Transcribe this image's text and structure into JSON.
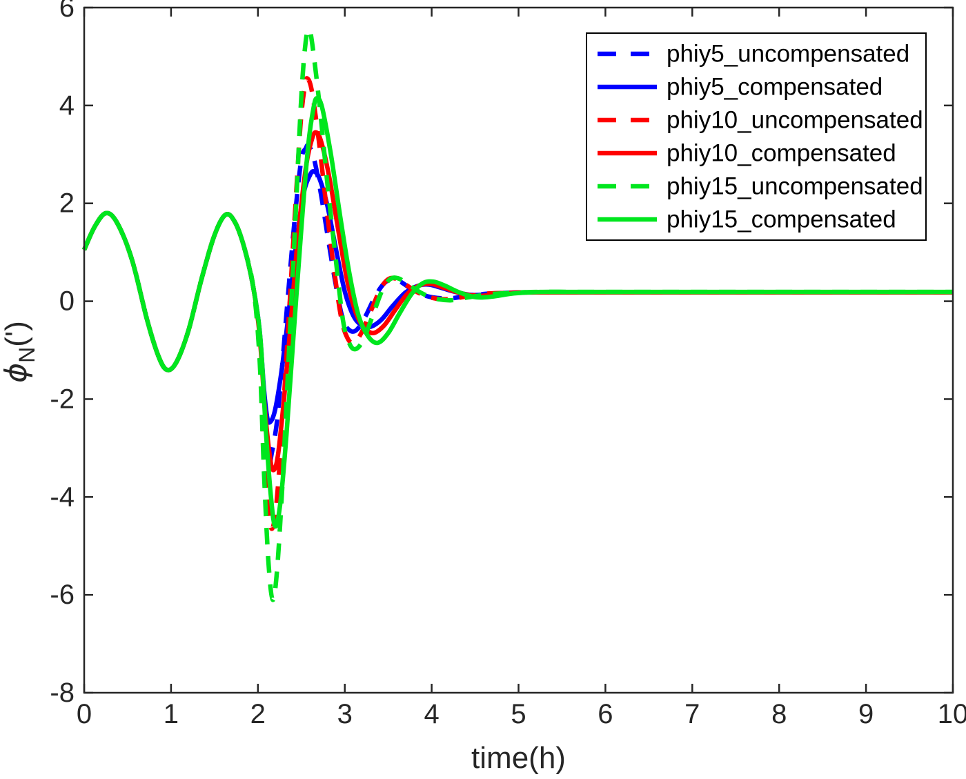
{
  "figure": {
    "background": "#ffffff",
    "axis_color": "#262626"
  },
  "chart_data": {
    "type": "line",
    "title": "",
    "xlabel": "time(h)",
    "ylabel": "ϕ_N(')",
    "ylabel_parts": {
      "symbol": "ϕ",
      "subscript": "N",
      "suffix": "(')"
    },
    "xlim": [
      0,
      10
    ],
    "ylim": [
      -8,
      6
    ],
    "xticks": [
      0,
      1,
      2,
      3,
      4,
      5,
      6,
      7,
      8,
      9,
      10
    ],
    "yticks": [
      6,
      4,
      2,
      0,
      -2,
      -4,
      -6,
      -8
    ],
    "grid": false,
    "legend_position": "northeast",
    "colors": {
      "blue": "#0000ff",
      "red": "#ff0000",
      "green": "#00e61e"
    },
    "common_prefix": [
      [
        0,
        1.05
      ],
      [
        0.12,
        1.52
      ],
      [
        0.25,
        1.8
      ],
      [
        0.38,
        1.6
      ],
      [
        0.55,
        0.85
      ],
      [
        0.72,
        -0.35
      ],
      [
        0.85,
        -1.1
      ],
      [
        0.95,
        -1.4
      ],
      [
        1.06,
        -1.25
      ],
      [
        1.2,
        -0.6
      ],
      [
        1.35,
        0.45
      ],
      [
        1.5,
        1.35
      ],
      [
        1.63,
        1.77
      ],
      [
        1.74,
        1.6
      ],
      [
        1.85,
        1.05
      ],
      [
        1.95,
        0.25
      ]
    ],
    "series": [
      {
        "name": "phiy5_uncompensated",
        "color": "blue",
        "style": "dashed",
        "points": [
          [
            2.02,
            -0.8
          ],
          [
            2.07,
            -2.3
          ],
          [
            2.12,
            -3.35
          ],
          [
            2.16,
            -3.1
          ],
          [
            2.22,
            -2.45
          ],
          [
            2.28,
            -1.3
          ],
          [
            2.35,
            0.2
          ],
          [
            2.43,
            1.8
          ],
          [
            2.5,
            2.9
          ],
          [
            2.55,
            3.12
          ],
          [
            2.58,
            3.18
          ],
          [
            2.64,
            2.95
          ],
          [
            2.72,
            2.25
          ],
          [
            2.81,
            1.25
          ],
          [
            2.9,
            0.3
          ],
          [
            2.98,
            -0.38
          ],
          [
            3.06,
            -0.6
          ],
          [
            3.14,
            -0.58
          ],
          [
            3.24,
            -0.3
          ],
          [
            3.35,
            0.1
          ],
          [
            3.45,
            0.36
          ],
          [
            3.54,
            0.45
          ],
          [
            3.63,
            0.41
          ],
          [
            3.75,
            0.27
          ],
          [
            3.9,
            0.13
          ],
          [
            4.05,
            0.07
          ],
          [
            4.22,
            0.06
          ],
          [
            4.42,
            0.11
          ],
          [
            4.62,
            0.15
          ],
          [
            4.85,
            0.17
          ],
          [
            5.1,
            0.18
          ],
          [
            5.5,
            0.18
          ],
          [
            6,
            0.18
          ],
          [
            7,
            0.18
          ],
          [
            8,
            0.18
          ],
          [
            9,
            0.18
          ],
          [
            10,
            0.18
          ]
        ]
      },
      {
        "name": "phiy5_compensated",
        "color": "blue",
        "style": "solid",
        "points": [
          [
            2.02,
            -0.6
          ],
          [
            2.07,
            -1.8
          ],
          [
            2.11,
            -2.4
          ],
          [
            2.15,
            -2.45
          ],
          [
            2.2,
            -2.2
          ],
          [
            2.27,
            -1.45
          ],
          [
            2.35,
            -0.3
          ],
          [
            2.43,
            1.0
          ],
          [
            2.52,
            2.15
          ],
          [
            2.6,
            2.58
          ],
          [
            2.65,
            2.65
          ],
          [
            2.71,
            2.5
          ],
          [
            2.8,
            1.95
          ],
          [
            2.9,
            1.05
          ],
          [
            3.0,
            0.2
          ],
          [
            3.1,
            -0.3
          ],
          [
            3.2,
            -0.5
          ],
          [
            3.3,
            -0.52
          ],
          [
            3.42,
            -0.38
          ],
          [
            3.55,
            -0.1
          ],
          [
            3.7,
            0.18
          ],
          [
            3.85,
            0.32
          ],
          [
            3.97,
            0.34
          ],
          [
            4.1,
            0.28
          ],
          [
            4.25,
            0.2
          ],
          [
            4.45,
            0.13
          ],
          [
            4.65,
            0.14
          ],
          [
            4.85,
            0.17
          ],
          [
            5.1,
            0.18
          ],
          [
            5.5,
            0.18
          ],
          [
            6,
            0.18
          ],
          [
            7,
            0.18
          ],
          [
            8,
            0.18
          ],
          [
            9,
            0.18
          ],
          [
            10,
            0.18
          ]
        ]
      },
      {
        "name": "phiy10_uncompensated",
        "color": "red",
        "style": "dashed",
        "points": [
          [
            2.02,
            -1.0
          ],
          [
            2.07,
            -2.9
          ],
          [
            2.12,
            -4.2
          ],
          [
            2.16,
            -4.65
          ],
          [
            2.21,
            -4.2
          ],
          [
            2.27,
            -2.8
          ],
          [
            2.34,
            -0.8
          ],
          [
            2.42,
            1.6
          ],
          [
            2.49,
            3.6
          ],
          [
            2.54,
            4.4
          ],
          [
            2.57,
            4.55
          ],
          [
            2.62,
            4.3
          ],
          [
            2.7,
            3.3
          ],
          [
            2.79,
            1.9
          ],
          [
            2.88,
            0.6
          ],
          [
            2.96,
            -0.35
          ],
          [
            3.03,
            -0.75
          ],
          [
            3.1,
            -0.85
          ],
          [
            3.19,
            -0.65
          ],
          [
            3.3,
            -0.2
          ],
          [
            3.41,
            0.25
          ],
          [
            3.5,
            0.45
          ],
          [
            3.59,
            0.46
          ],
          [
            3.7,
            0.34
          ],
          [
            3.85,
            0.17
          ],
          [
            4.0,
            0.07
          ],
          [
            4.18,
            0.04
          ],
          [
            4.38,
            0.09
          ],
          [
            4.6,
            0.15
          ],
          [
            4.85,
            0.17
          ],
          [
            5.1,
            0.18
          ],
          [
            5.5,
            0.18
          ],
          [
            6,
            0.18
          ],
          [
            7,
            0.18
          ],
          [
            8,
            0.18
          ],
          [
            9,
            0.18
          ],
          [
            10,
            0.18
          ]
        ]
      },
      {
        "name": "phiy10_compensated",
        "color": "red",
        "style": "solid",
        "points": [
          [
            2.02,
            -0.7
          ],
          [
            2.08,
            -2.2
          ],
          [
            2.14,
            -3.2
          ],
          [
            2.18,
            -3.45
          ],
          [
            2.23,
            -3.15
          ],
          [
            2.3,
            -2.0
          ],
          [
            2.38,
            -0.4
          ],
          [
            2.46,
            1.3
          ],
          [
            2.55,
            2.7
          ],
          [
            2.62,
            3.3
          ],
          [
            2.67,
            3.45
          ],
          [
            2.73,
            3.25
          ],
          [
            2.82,
            2.55
          ],
          [
            2.93,
            1.4
          ],
          [
            3.03,
            0.4
          ],
          [
            3.13,
            -0.25
          ],
          [
            3.23,
            -0.55
          ],
          [
            3.33,
            -0.65
          ],
          [
            3.45,
            -0.5
          ],
          [
            3.58,
            -0.18
          ],
          [
            3.72,
            0.15
          ],
          [
            3.87,
            0.33
          ],
          [
            4.0,
            0.35
          ],
          [
            4.13,
            0.28
          ],
          [
            4.3,
            0.18
          ],
          [
            4.5,
            0.11
          ],
          [
            4.7,
            0.13
          ],
          [
            4.9,
            0.17
          ],
          [
            5.2,
            0.18
          ],
          [
            5.6,
            0.18
          ],
          [
            6,
            0.18
          ],
          [
            7,
            0.18
          ],
          [
            8,
            0.18
          ],
          [
            9,
            0.18
          ],
          [
            10,
            0.18
          ]
        ]
      },
      {
        "name": "phiy15_uncompensated",
        "color": "green",
        "style": "dashed",
        "points": [
          [
            2.02,
            -1.2
          ],
          [
            2.07,
            -3.5
          ],
          [
            2.12,
            -5.3
          ],
          [
            2.17,
            -6.1
          ],
          [
            2.22,
            -5.5
          ],
          [
            2.28,
            -3.8
          ],
          [
            2.35,
            -1.3
          ],
          [
            2.43,
            1.6
          ],
          [
            2.5,
            4.2
          ],
          [
            2.55,
            5.3
          ],
          [
            2.59,
            5.55
          ],
          [
            2.63,
            5.2
          ],
          [
            2.71,
            4.0
          ],
          [
            2.8,
            2.4
          ],
          [
            2.9,
            0.8
          ],
          [
            2.98,
            -0.4
          ],
          [
            3.05,
            -0.85
          ],
          [
            3.12,
            -0.98
          ],
          [
            3.21,
            -0.8
          ],
          [
            3.32,
            -0.3
          ],
          [
            3.43,
            0.22
          ],
          [
            3.52,
            0.45
          ],
          [
            3.61,
            0.47
          ],
          [
            3.72,
            0.36
          ],
          [
            3.87,
            0.18
          ],
          [
            4.03,
            0.06
          ],
          [
            4.22,
            0.02
          ],
          [
            4.42,
            0.08
          ],
          [
            4.65,
            0.14
          ],
          [
            4.9,
            0.17
          ],
          [
            5.2,
            0.19
          ],
          [
            5.6,
            0.19
          ],
          [
            6,
            0.19
          ],
          [
            7,
            0.19
          ],
          [
            8,
            0.19
          ],
          [
            9,
            0.19
          ],
          [
            10,
            0.19
          ]
        ]
      },
      {
        "name": "phiy15_compensated",
        "color": "green",
        "style": "solid",
        "points": [
          [
            2.03,
            -0.8
          ],
          [
            2.09,
            -2.6
          ],
          [
            2.15,
            -4.0
          ],
          [
            2.2,
            -4.6
          ],
          [
            2.26,
            -4.1
          ],
          [
            2.33,
            -2.7
          ],
          [
            2.41,
            -0.7
          ],
          [
            2.5,
            1.5
          ],
          [
            2.58,
            3.2
          ],
          [
            2.64,
            3.95
          ],
          [
            2.68,
            4.15
          ],
          [
            2.74,
            3.95
          ],
          [
            2.84,
            3.0
          ],
          [
            2.95,
            1.7
          ],
          [
            3.06,
            0.5
          ],
          [
            3.16,
            -0.3
          ],
          [
            3.27,
            -0.72
          ],
          [
            3.38,
            -0.85
          ],
          [
            3.5,
            -0.65
          ],
          [
            3.63,
            -0.25
          ],
          [
            3.77,
            0.15
          ],
          [
            3.9,
            0.37
          ],
          [
            4.02,
            0.4
          ],
          [
            4.15,
            0.32
          ],
          [
            4.32,
            0.18
          ],
          [
            4.52,
            0.08
          ],
          [
            4.72,
            0.1
          ],
          [
            4.95,
            0.16
          ],
          [
            5.25,
            0.19
          ],
          [
            5.6,
            0.19
          ],
          [
            6,
            0.19
          ],
          [
            7,
            0.19
          ],
          [
            8,
            0.19
          ],
          [
            9,
            0.19
          ],
          [
            10,
            0.19
          ]
        ]
      }
    ],
    "legend": [
      {
        "label": "phiy5_uncompensated",
        "color": "blue",
        "style": "dashed"
      },
      {
        "label": "phiy5_compensated",
        "color": "blue",
        "style": "solid"
      },
      {
        "label": "phiy10_uncompensated",
        "color": "red",
        "style": "dashed"
      },
      {
        "label": "phiy10_compensated",
        "color": "red",
        "style": "solid"
      },
      {
        "label": "phiy15_uncompensated",
        "color": "green",
        "style": "dashed"
      },
      {
        "label": "phiy15_compensated",
        "color": "green",
        "style": "solid"
      }
    ]
  }
}
